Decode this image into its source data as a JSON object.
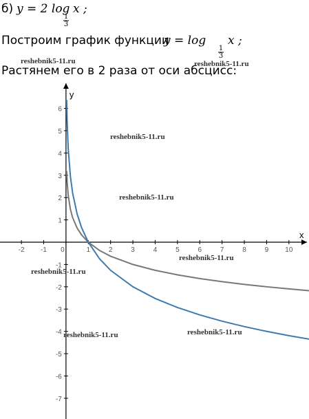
{
  "line1": {
    "label": "б)",
    "formula": "y = 2 log",
    "sub_num": "1",
    "sub_den": "3",
    "tail": "x ;"
  },
  "line2": {
    "text": "Построим график функции",
    "formula": "y = log",
    "sub_num": "1",
    "sub_den": "3",
    "tail": "x ;"
  },
  "line3": {
    "text": "Растянем его в 2 раза от оси абсцисс:"
  },
  "watermarks": [
    "reshebnik5-11.ru",
    "reshebnik5-11.ru",
    "reshebnik5-11.ru",
    "reshebnik5-11.ru",
    "reshebnik5-11.ru",
    "reshebnik5-11.ru",
    "reshebnik5-11.ru",
    "reshebnik5-11.ru"
  ],
  "chart_data": {
    "type": "line",
    "x_label": "x",
    "y_label": "y",
    "x": [
      0.03,
      0.05,
      0.1,
      0.2,
      0.3,
      0.5,
      0.7,
      1,
      1.5,
      2,
      3,
      4,
      5,
      6,
      7,
      8,
      9,
      10,
      11
    ],
    "series": [
      {
        "color": "#777777",
        "values": [
          3.192,
          2.727,
          2.096,
          1.465,
          1.096,
          0.631,
          0.325,
          0,
          -0.369,
          -0.631,
          -1,
          -1.262,
          -1.465,
          -1.631,
          -1.771,
          -1.893,
          -2,
          -2.096,
          -2.183
        ]
      },
      {
        "color": "#3d7ab0",
        "values": [
          6.384,
          5.454,
          4.192,
          2.93,
          2.192,
          1.262,
          0.649,
          0,
          -0.738,
          -1.262,
          -2,
          -2.524,
          -2.93,
          -3.262,
          -3.542,
          -3.786,
          -4,
          -4.192,
          -4.365
        ]
      }
    ],
    "xlim": [
      -2.96,
      10.9
    ],
    "ylim": [
      -7.93,
      7.22
    ],
    "xticks": [
      -2,
      -1,
      0,
      1,
      2,
      3,
      4,
      5,
      6,
      7,
      8,
      9,
      10
    ],
    "yticks": [
      -7,
      -6,
      -5,
      -4,
      -3,
      -2,
      -1,
      1,
      2,
      3,
      4,
      5,
      6
    ]
  }
}
